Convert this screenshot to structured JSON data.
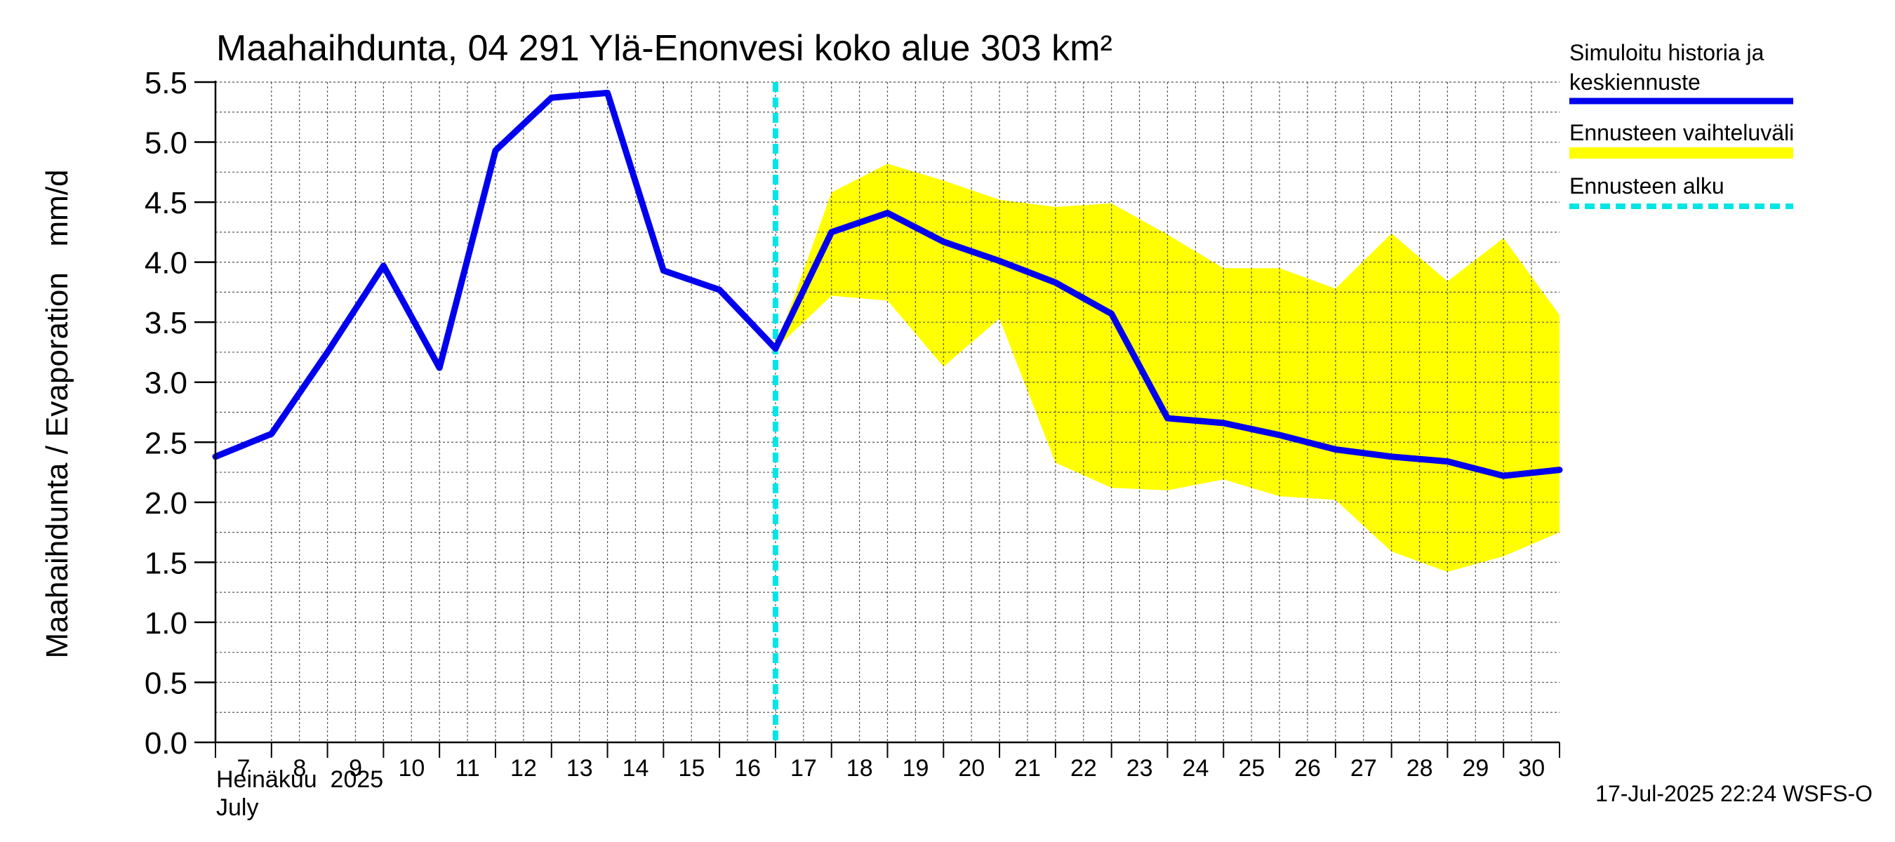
{
  "chart_data": {
    "type": "line",
    "title": "Maahaihdunta, 04 291 Ylä-Enonvesi koko alue 303 km²",
    "ylabel": "Maahaihdunta / Evaporation   mm/d",
    "ylim": [
      0,
      5.5
    ],
    "yticks": [
      "0.0",
      "0.5",
      "1.0",
      "1.5",
      "2.0",
      "2.5",
      "3.0",
      "3.5",
      "4.0",
      "4.5",
      "5.0",
      "5.5"
    ],
    "xlim": [
      7,
      31
    ],
    "x_tick_labels": [
      "7",
      "8",
      "9",
      "10",
      "11",
      "12",
      "13",
      "14",
      "15",
      "16",
      "17",
      "18",
      "19",
      "20",
      "21",
      "22",
      "23",
      "24",
      "25",
      "26",
      "27",
      "28",
      "29",
      "30"
    ],
    "x_month_label": "Heinäkuu  2025",
    "x_month_label_en": "July",
    "grid": true,
    "legend_position": "right",
    "forecast_start": 17,
    "series": [
      {
        "name": "Simuloitu historia ja keskiennuste",
        "color": "#0000ee",
        "x": [
          7,
          8,
          9,
          10,
          11,
          12,
          13,
          14,
          15,
          16,
          17,
          18,
          19,
          20,
          21,
          22,
          23,
          24,
          25,
          26,
          27,
          28,
          29,
          30,
          31
        ],
        "y": [
          2.38,
          2.57,
          3.25,
          3.97,
          3.12,
          4.93,
          5.37,
          5.41,
          3.93,
          3.77,
          3.28,
          4.25,
          4.41,
          4.17,
          4.01,
          3.83,
          3.57,
          2.7,
          2.66,
          2.56,
          2.44,
          2.38,
          2.34,
          2.22,
          2.27
        ]
      }
    ],
    "band": {
      "name": "Ennusteen vaihteluväli",
      "color": "#ffff00",
      "x": [
        17,
        18,
        19,
        20,
        21,
        22,
        23,
        24,
        25,
        26,
        27,
        28,
        29,
        30,
        31
      ],
      "upper": [
        3.28,
        4.58,
        4.82,
        4.68,
        4.52,
        4.46,
        4.49,
        4.23,
        3.95,
        3.95,
        3.78,
        4.24,
        3.84,
        4.2,
        3.56
      ],
      "lower": [
        3.28,
        3.72,
        3.68,
        3.13,
        3.53,
        2.33,
        2.12,
        2.1,
        2.19,
        2.05,
        2.02,
        1.59,
        1.42,
        1.55,
        1.75
      ]
    },
    "legend": [
      {
        "label_line1": "Simuloitu historia ja",
        "label_line2": "keskiennuste",
        "color": "#0000ee",
        "style": "solid"
      },
      {
        "label_line1": "Ennusteen vaihteluväli",
        "label_line2": "",
        "color": "#ffff00",
        "style": "band"
      },
      {
        "label_line1": "Ennusteen alku",
        "label_line2": "",
        "color": "#00e5e5",
        "style": "dashed"
      }
    ],
    "footer": "17-Jul-2025 22:24 WSFS-O"
  }
}
